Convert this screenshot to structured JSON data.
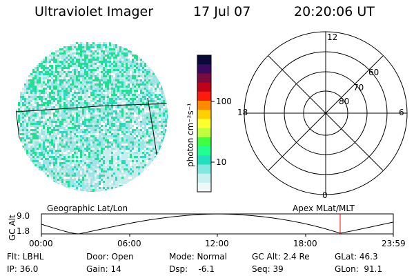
{
  "header": {
    "title": "Ultraviolet Imager",
    "date": "17 Jul 07",
    "time": "20:20:06 UT"
  },
  "colors": {
    "background": "#ffffff",
    "foreground": "#000000",
    "marker": "#ff0000"
  },
  "colorbar": {
    "unit_label": "photon cm⁻²s⁻¹",
    "tick_labels": [
      "100",
      "10"
    ],
    "colors_top_to_bottom": [
      "#0a0a3a",
      "#3a0a5e",
      "#7a0a40",
      "#c00018",
      "#ff1a10",
      "#ff8a00",
      "#ffd000",
      "#ffff30",
      "#bfff40",
      "#40ff40",
      "#20ff90",
      "#20e0c0",
      "#80e8e0",
      "#c8f0f0",
      "#eef8f8"
    ]
  },
  "polar_plot": {
    "clock_labels": [
      "12",
      "18",
      "6",
      "0"
    ],
    "lat_labels": [
      "60",
      "70",
      "80"
    ]
  },
  "timeline": {
    "left_label": "Geographic Lat/Lon",
    "right_label": "Apex MLat/MLT",
    "axis_label": "GC Alt",
    "y_ticks": [
      "9.0",
      "1.8"
    ],
    "x_ticks": [
      "00:00",
      "06:00",
      "12:00",
      "18:00",
      "23:59"
    ]
  },
  "info": {
    "filter": "Flt: LBHL",
    "door": "Door: Open",
    "mode": "Mode: Normal",
    "gc_alt": "GC Alt: 2.4 Re",
    "glat": "GLat:  46.3",
    "ip": "IP: 36.0",
    "gain": "Gain: 14",
    "dsp": "Dsp:    -6.1",
    "seq": "Seq: 39",
    "glon": "GLon:  91.1"
  }
}
